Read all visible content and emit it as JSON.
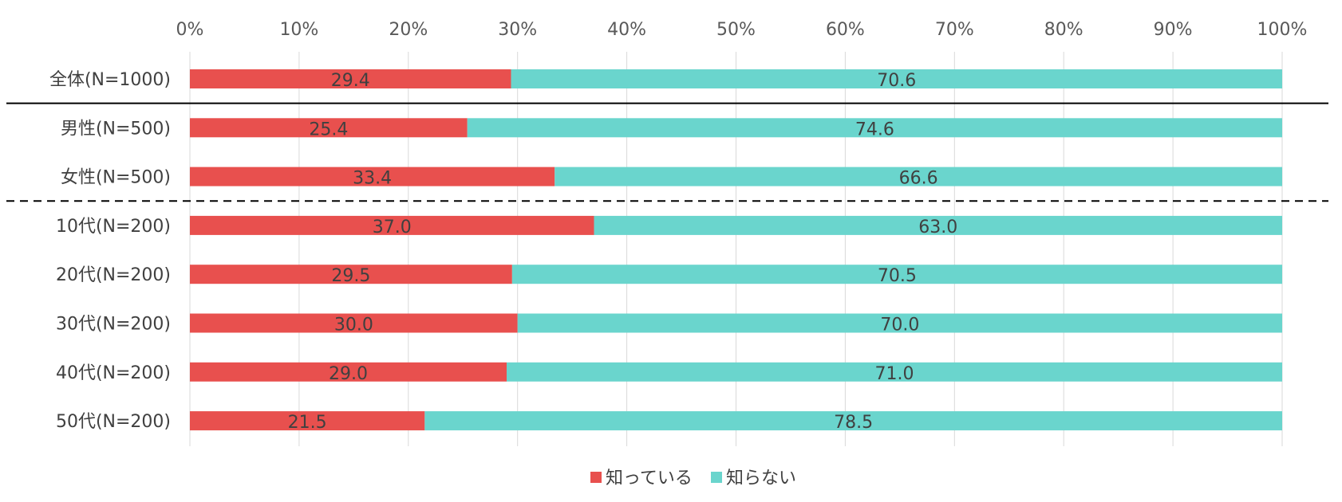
{
  "chart_data": {
    "type": "bar",
    "orientation": "horizontal",
    "stacked": true,
    "percent_stacked": true,
    "title": "",
    "xlabel": "",
    "ylabel": "",
    "xlim": [
      0,
      100
    ],
    "x_ticks": [
      "0%",
      "10%",
      "20%",
      "30%",
      "40%",
      "50%",
      "60%",
      "70%",
      "80%",
      "90%",
      "100%"
    ],
    "grid": true,
    "legend_position": "bottom",
    "categories": [
      "全体(N=1000)",
      "男性(N=500)",
      "女性(N=500)",
      "10代(N=200)",
      "20代(N=200)",
      "30代(N=200)",
      "40代(N=200)",
      "50代(N=200)"
    ],
    "series": [
      {
        "name": "知っている",
        "color": "#E8504E",
        "values": [
          29.4,
          25.4,
          33.4,
          37.0,
          29.5,
          30.0,
          29.0,
          21.5
        ],
        "labels": [
          "29.4",
          "25.4",
          "33.4",
          "37.0",
          "29.5",
          "30.0",
          "29.0",
          "21.5"
        ]
      },
      {
        "name": "知らない",
        "color": "#6AD5CD",
        "values": [
          70.6,
          74.6,
          66.6,
          63.0,
          70.5,
          70.0,
          71.0,
          78.5
        ],
        "labels": [
          "70.6",
          "74.6",
          "66.6",
          "63.0",
          "70.5",
          "70.0",
          "71.0",
          "78.5"
        ]
      }
    ],
    "separators": [
      {
        "after_category": "全体(N=1000)",
        "style": "solid"
      },
      {
        "after_category": "女性(N=500)",
        "style": "dashed"
      }
    ]
  }
}
